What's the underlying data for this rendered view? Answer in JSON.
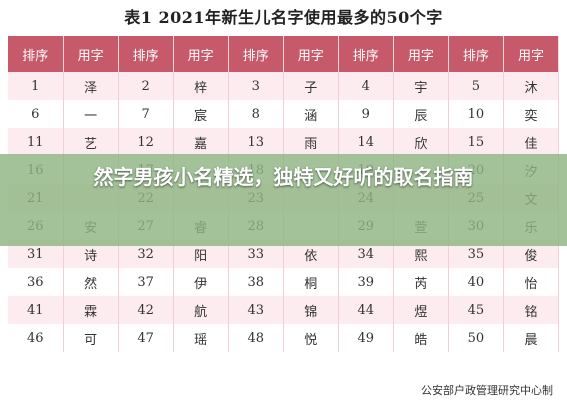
{
  "title": "表1  2021年新生儿名字使用最多的50个字",
  "table": {
    "headers": [
      "排序",
      "用字",
      "排序",
      "用字",
      "排序",
      "用字",
      "排序",
      "用字",
      "排序",
      "用字"
    ],
    "rows": [
      [
        "1",
        "泽",
        "2",
        "梓",
        "3",
        "子",
        "4",
        "宇",
        "5",
        "沐"
      ],
      [
        "6",
        "一",
        "7",
        "宸",
        "8",
        "涵",
        "9",
        "辰",
        "10",
        "奕"
      ],
      [
        "11",
        "艺",
        "12",
        "嘉",
        "13",
        "雨",
        "14",
        "欣",
        "15",
        "佳"
      ],
      [
        "16",
        "",
        "17",
        "",
        "18",
        "",
        "19",
        "",
        "20",
        "汐"
      ],
      [
        "21",
        "",
        "22",
        "",
        "23",
        "",
        "24",
        "",
        "25",
        "文"
      ],
      [
        "26",
        "安",
        "27",
        "睿",
        "28",
        "",
        "29",
        "萱",
        "30",
        "乐"
      ],
      [
        "31",
        "诗",
        "32",
        "阳",
        "33",
        "依",
        "34",
        "熙",
        "35",
        "俊"
      ],
      [
        "36",
        "然",
        "37",
        "伊",
        "38",
        "桐",
        "39",
        "芮",
        "40",
        "怡"
      ],
      [
        "41",
        "霖",
        "42",
        "航",
        "43",
        "锦",
        "44",
        "煜",
        "45",
        "铭"
      ],
      [
        "46",
        "可",
        "47",
        "瑶",
        "48",
        "悦",
        "49",
        "皓",
        "50",
        "晨"
      ]
    ]
  },
  "source": "公安部户政管理研究中心制",
  "overlay": {
    "text": "然字男孩小名精选，独特又好听的取名指南"
  }
}
